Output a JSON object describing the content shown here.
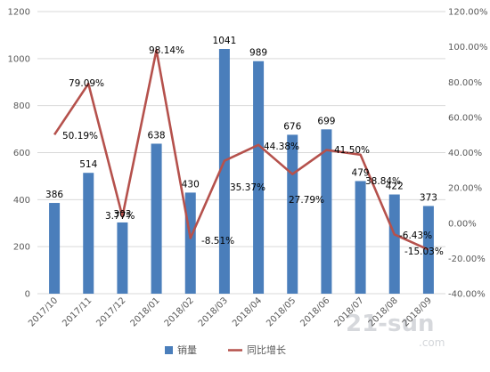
{
  "chart_data": {
    "type": "bar",
    "categories": [
      "2017/10",
      "2017/11",
      "2017/12",
      "2018/01",
      "2018/02",
      "2018/03",
      "2018/04",
      "2018/05",
      "2018/06",
      "2018/07",
      "2018/08",
      "2018/09"
    ],
    "series": [
      {
        "name": "销量",
        "type": "bar",
        "axis": "left",
        "values": [
          386,
          514,
          303,
          638,
          430,
          1041,
          989,
          676,
          699,
          479,
          422,
          373
        ],
        "labels": [
          "386",
          "514",
          "303",
          "638",
          "430",
          "1041",
          "989",
          "676",
          "699",
          "479",
          "422",
          "373"
        ],
        "color": "#4a7ebb"
      },
      {
        "name": "同比增长",
        "type": "line",
        "axis": "right",
        "values": [
          50.19,
          79.09,
          3.77,
          98.14,
          -8.51,
          35.37,
          44.38,
          27.79,
          41.5,
          38.84,
          -6.43,
          -15.03
        ],
        "labels": [
          "50.19%",
          "79.09%",
          "3.77%",
          "98.14%",
          "-8.51%",
          "35.37%",
          "44.38%",
          "27.79%",
          "41.50%",
          "38.84%",
          "-6.43%",
          "-15.03%"
        ],
        "color": "#b5514c"
      }
    ],
    "y_left": {
      "ylim": [
        0,
        1200
      ],
      "ticks": [
        "0",
        "200",
        "400",
        "600",
        "800",
        "1000",
        "1200"
      ]
    },
    "y_right": {
      "ylim": [
        -40,
        120
      ],
      "ticks": [
        "-40.00%",
        "-20.00%",
        "0.00%",
        "20.00%",
        "40.00%",
        "60.00%",
        "80.00%",
        "100.00%",
        "120.00%"
      ]
    },
    "grid": true,
    "legend_position": "bottom"
  },
  "watermark": {
    "main": "21-sun",
    "sub": ".com"
  }
}
